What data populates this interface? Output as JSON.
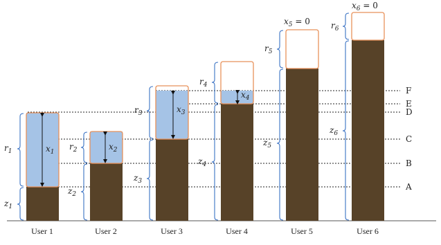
{
  "users": [
    {
      "name": "User 1",
      "z": "z",
      "z_sub": "1",
      "r": "r",
      "r_sub": "1",
      "x": "x",
      "x_sub": "1",
      "x_note": ""
    },
    {
      "name": "User 2",
      "z": "z",
      "z_sub": "2",
      "r": "r",
      "r_sub": "2",
      "x": "x",
      "x_sub": "2",
      "x_note": ""
    },
    {
      "name": "User 3",
      "z": "z",
      "z_sub": "3",
      "r": "r",
      "r_sub": "3",
      "x": "x",
      "x_sub": "3",
      "x_note": ""
    },
    {
      "name": "User 4",
      "z": "z",
      "z_sub": "4",
      "r": "r",
      "r_sub": "4",
      "x": "x",
      "x_sub": "4",
      "x_note": ""
    },
    {
      "name": "User 5",
      "z": "z",
      "z_sub": "5",
      "r": "r",
      "r_sub": "5",
      "x": "x",
      "x_sub": "5",
      "x_note": " = 0"
    },
    {
      "name": "User 6",
      "z": "z",
      "z_sub": "6",
      "r": "r",
      "r_sub": "6",
      "x": "x",
      "x_sub": "6",
      "x_note": " = 0"
    }
  ],
  "levels": [
    "A",
    "B",
    "C",
    "D",
    "E",
    "F"
  ],
  "colors": {
    "base": "#574228",
    "fill": "#a5c3e6",
    "frame": "#e8915a",
    "brace": "#3a72c4"
  }
}
